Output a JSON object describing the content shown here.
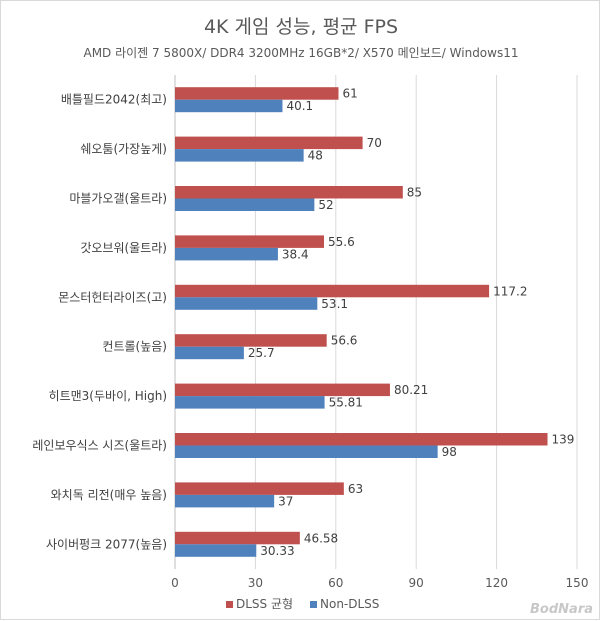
{
  "chart_data": {
    "type": "bar",
    "orientation": "horizontal",
    "title": "4K 게임 성능, 평균 FPS",
    "subtitle": "AMD 라이젠 7 5800X/ DDR4 3200MHz 16GB*2/ X570 메인보드/ Windows11",
    "categories": [
      "배틀필드2042(최고)",
      "쉐오툼(가장높게)",
      "마블가오갤(울트라)",
      "갓오브워(울트라)",
      "몬스터헌터라이즈(고)",
      "컨트롤(높음)",
      "히트맨3(두바이, High)",
      "레인보우식스 시즈(울트라)",
      "와치독 리전(매우 높음)",
      "사이버펑크 2077(높음)"
    ],
    "series": [
      {
        "name": "DLSS 균형",
        "color": "#c0504d",
        "values": [
          61,
          70,
          85,
          55.6,
          117.2,
          56.6,
          80.21,
          139,
          63,
          46.58
        ],
        "labels": [
          "61",
          "70",
          "85",
          "55.6",
          "117.2",
          "56.6",
          "80.21",
          "139",
          "63",
          "46.58"
        ]
      },
      {
        "name": "Non-DLSS",
        "color": "#4f81bd",
        "values": [
          40.1,
          48,
          52,
          38.4,
          53.1,
          25.7,
          55.81,
          98,
          37,
          30.33
        ],
        "labels": [
          "40.1",
          "48",
          "52",
          "38.4",
          "53.1",
          "25.7",
          "55.81",
          "98",
          "37",
          "30.33"
        ]
      }
    ],
    "xlim": [
      0,
      150
    ],
    "xticks": [
      "0",
      "30",
      "60",
      "90",
      "120",
      "150"
    ],
    "grid": true,
    "legend_position": "bottom"
  },
  "watermark": "BodNara"
}
